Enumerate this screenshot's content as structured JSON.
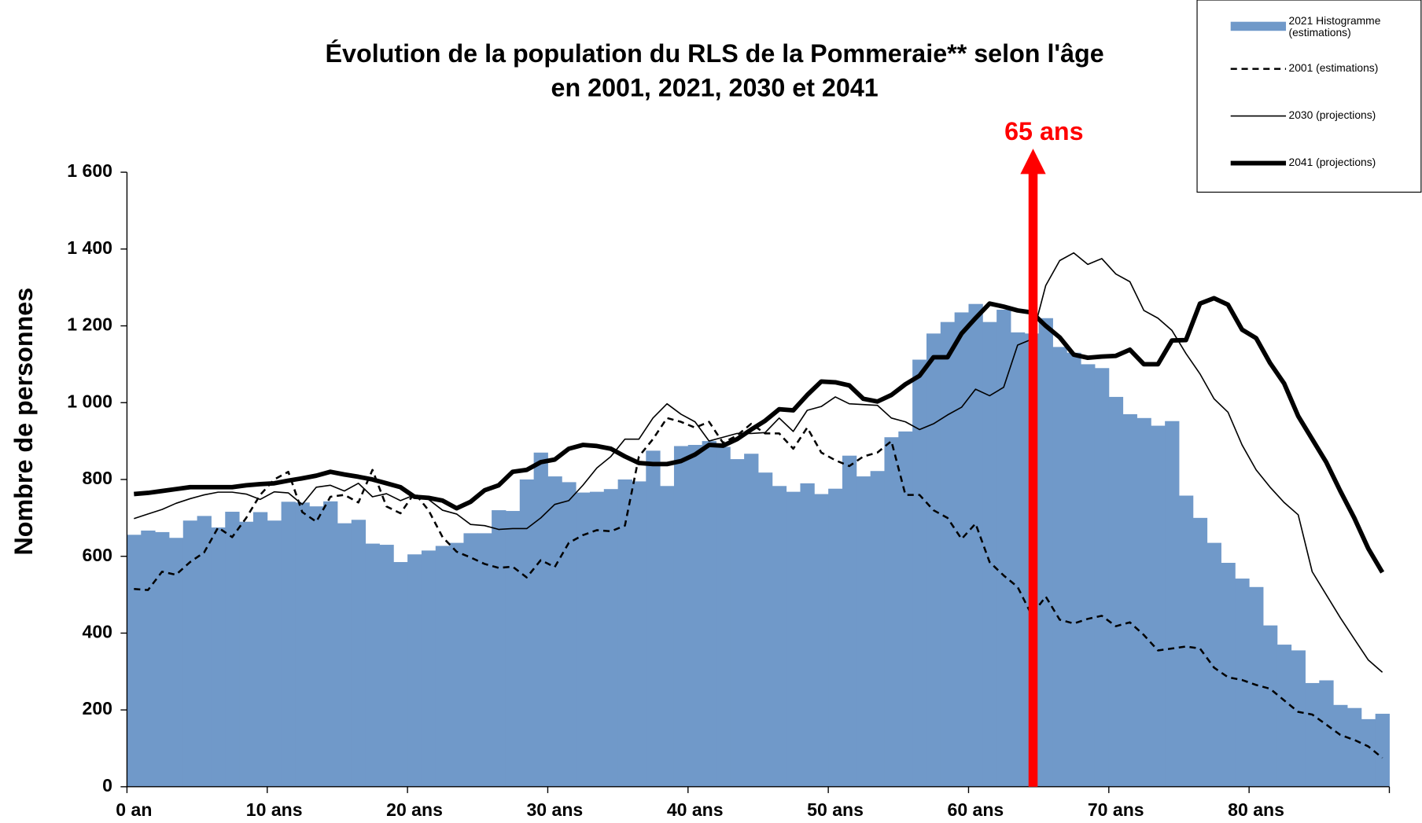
{
  "chart_data": {
    "type": "bar",
    "title": [
      "Évolution de la population du RLS de la Pommeraie** selon l'âge",
      "en 2001, 2021, 2030 et 2041"
    ],
    "y_label": "Nombre de personnes",
    "annotation": "65 ans",
    "categories": [
      "0 an",
      null,
      null,
      null,
      null,
      null,
      null,
      null,
      null,
      null,
      "10 ans",
      null,
      null,
      null,
      null,
      null,
      null,
      null,
      null,
      null,
      "20 ans",
      null,
      null,
      null,
      null,
      null,
      null,
      null,
      null,
      null,
      "30 ans",
      null,
      null,
      null,
      null,
      null,
      null,
      null,
      null,
      null,
      "40 ans",
      null,
      null,
      null,
      null,
      null,
      null,
      null,
      null,
      null,
      "50 ans",
      null,
      null,
      null,
      null,
      null,
      null,
      null,
      null,
      null,
      "60 ans",
      null,
      null,
      null,
      null,
      null,
      null,
      null,
      null,
      null,
      "70 ans",
      null,
      null,
      null,
      null,
      null,
      null,
      null,
      null,
      null,
      "80 ans",
      null,
      null,
      null,
      null,
      null,
      null,
      null,
      null,
      null
    ],
    "ylim": [
      0,
      1600
    ],
    "yticks": [
      0,
      200,
      400,
      600,
      800,
      {
        "value": 1000,
        "label": "1 000"
      },
      {
        "value": 1200,
        "label": "1 200"
      },
      {
        "value": 1400,
        "label": "1 400"
      },
      {
        "value": 1600,
        "label": "1 600"
      }
    ],
    "grid": false,
    "legend": "top-right",
    "series": [
      {
        "name": "2021 Histogramme (estimations)",
        "type": "bar",
        "color": "#7099c9",
        "values": [
          656,
          667,
          663,
          648,
          693,
          705,
          675,
          716,
          690,
          715,
          693,
          742,
          740,
          730,
          743,
          686,
          695,
          633,
          630,
          585,
          605,
          615,
          627,
          635,
          660,
          660,
          720,
          718,
          800,
          870,
          808,
          793,
          766,
          768,
          775,
          800,
          795,
          875,
          783,
          887,
          890,
          900,
          885,
          853,
          867,
          818,
          783,
          768,
          790,
          762,
          776,
          862,
          808,
          822,
          910,
          925,
          1112,
          1180,
          1210,
          1235,
          1257,
          1210,
          1242,
          1183,
          1180,
          1220,
          1145,
          1130,
          1100,
          1090,
          1015,
          970,
          960,
          940,
          952,
          758,
          700,
          635,
          583,
          542,
          520,
          420,
          370,
          355,
          270,
          277,
          213,
          205,
          176,
          190
        ]
      },
      {
        "name": "2001 (estimations)",
        "type": "line",
        "style": "dashed",
        "color": "#000000",
        "values": [
          515,
          512,
          560,
          552,
          585,
          610,
          675,
          650,
          700,
          760,
          800,
          820,
          715,
          690,
          755,
          760,
          740,
          825,
          730,
          712,
          765,
          720,
          650,
          612,
          597,
          580,
          570,
          573,
          545,
          590,
          572,
          635,
          655,
          668,
          665,
          680,
          860,
          905,
          960,
          950,
          935,
          950,
          895,
          915,
          945,
          920,
          920,
          880,
          935,
          870,
          850,
          835,
          860,
          870,
          900,
          760,
          760,
          720,
          700,
          645,
          685,
          585,
          550,
          520,
          447,
          495,
          435,
          425,
          437,
          445,
          418,
          428,
          395,
          355,
          360,
          365,
          360,
          310,
          285,
          278,
          265,
          255,
          225,
          195,
          188,
          162,
          135,
          122,
          105,
          75
        ]
      },
      {
        "name": "2030 (projections)",
        "type": "line",
        "style": "thin",
        "color": "#000000",
        "values": [
          698,
          710,
          722,
          738,
          750,
          760,
          767,
          767,
          762,
          748,
          768,
          765,
          735,
          780,
          785,
          770,
          790,
          755,
          763,
          745,
          760,
          748,
          720,
          710,
          683,
          680,
          670,
          672,
          672,
          700,
          735,
          745,
          785,
          830,
          860,
          905,
          905,
          960,
          997,
          970,
          950,
          900,
          910,
          920,
          920,
          922,
          960,
          925,
          980,
          990,
          1015,
          997,
          995,
          993,
          960,
          950,
          930,
          945,
          968,
          988,
          1035,
          1018,
          1040,
          1150,
          1165,
          1305,
          1370,
          1390,
          1360,
          1375,
          1335,
          1315,
          1240,
          1220,
          1188,
          1128,
          1075,
          1010,
          975,
          890,
          825,
          780,
          740,
          708,
          560,
          500,
          440,
          385,
          330,
          298
        ]
      },
      {
        "name": "2041 (projections)",
        "type": "line",
        "style": "thick",
        "color": "#000000",
        "values": [
          762,
          765,
          770,
          775,
          780,
          780,
          780,
          780,
          785,
          788,
          790,
          797,
          803,
          810,
          820,
          813,
          807,
          800,
          790,
          780,
          755,
          752,
          745,
          725,
          742,
          772,
          785,
          820,
          825,
          845,
          852,
          880,
          890,
          887,
          880,
          860,
          843,
          840,
          840,
          848,
          865,
          890,
          888,
          905,
          930,
          953,
          983,
          980,
          1020,
          1055,
          1053,
          1045,
          1010,
          1003,
          1020,
          1048,
          1070,
          1118,
          1118,
          1180,
          1220,
          1258,
          1250,
          1240,
          1235,
          1200,
          1170,
          1125,
          1117,
          1120,
          1122,
          1138,
          1100,
          1100,
          1162,
          1163,
          1258,
          1272,
          1255,
          1190,
          1168,
          1103,
          1050,
          965,
          905,
          845,
          770,
          700,
          620,
          558
        ]
      }
    ]
  }
}
